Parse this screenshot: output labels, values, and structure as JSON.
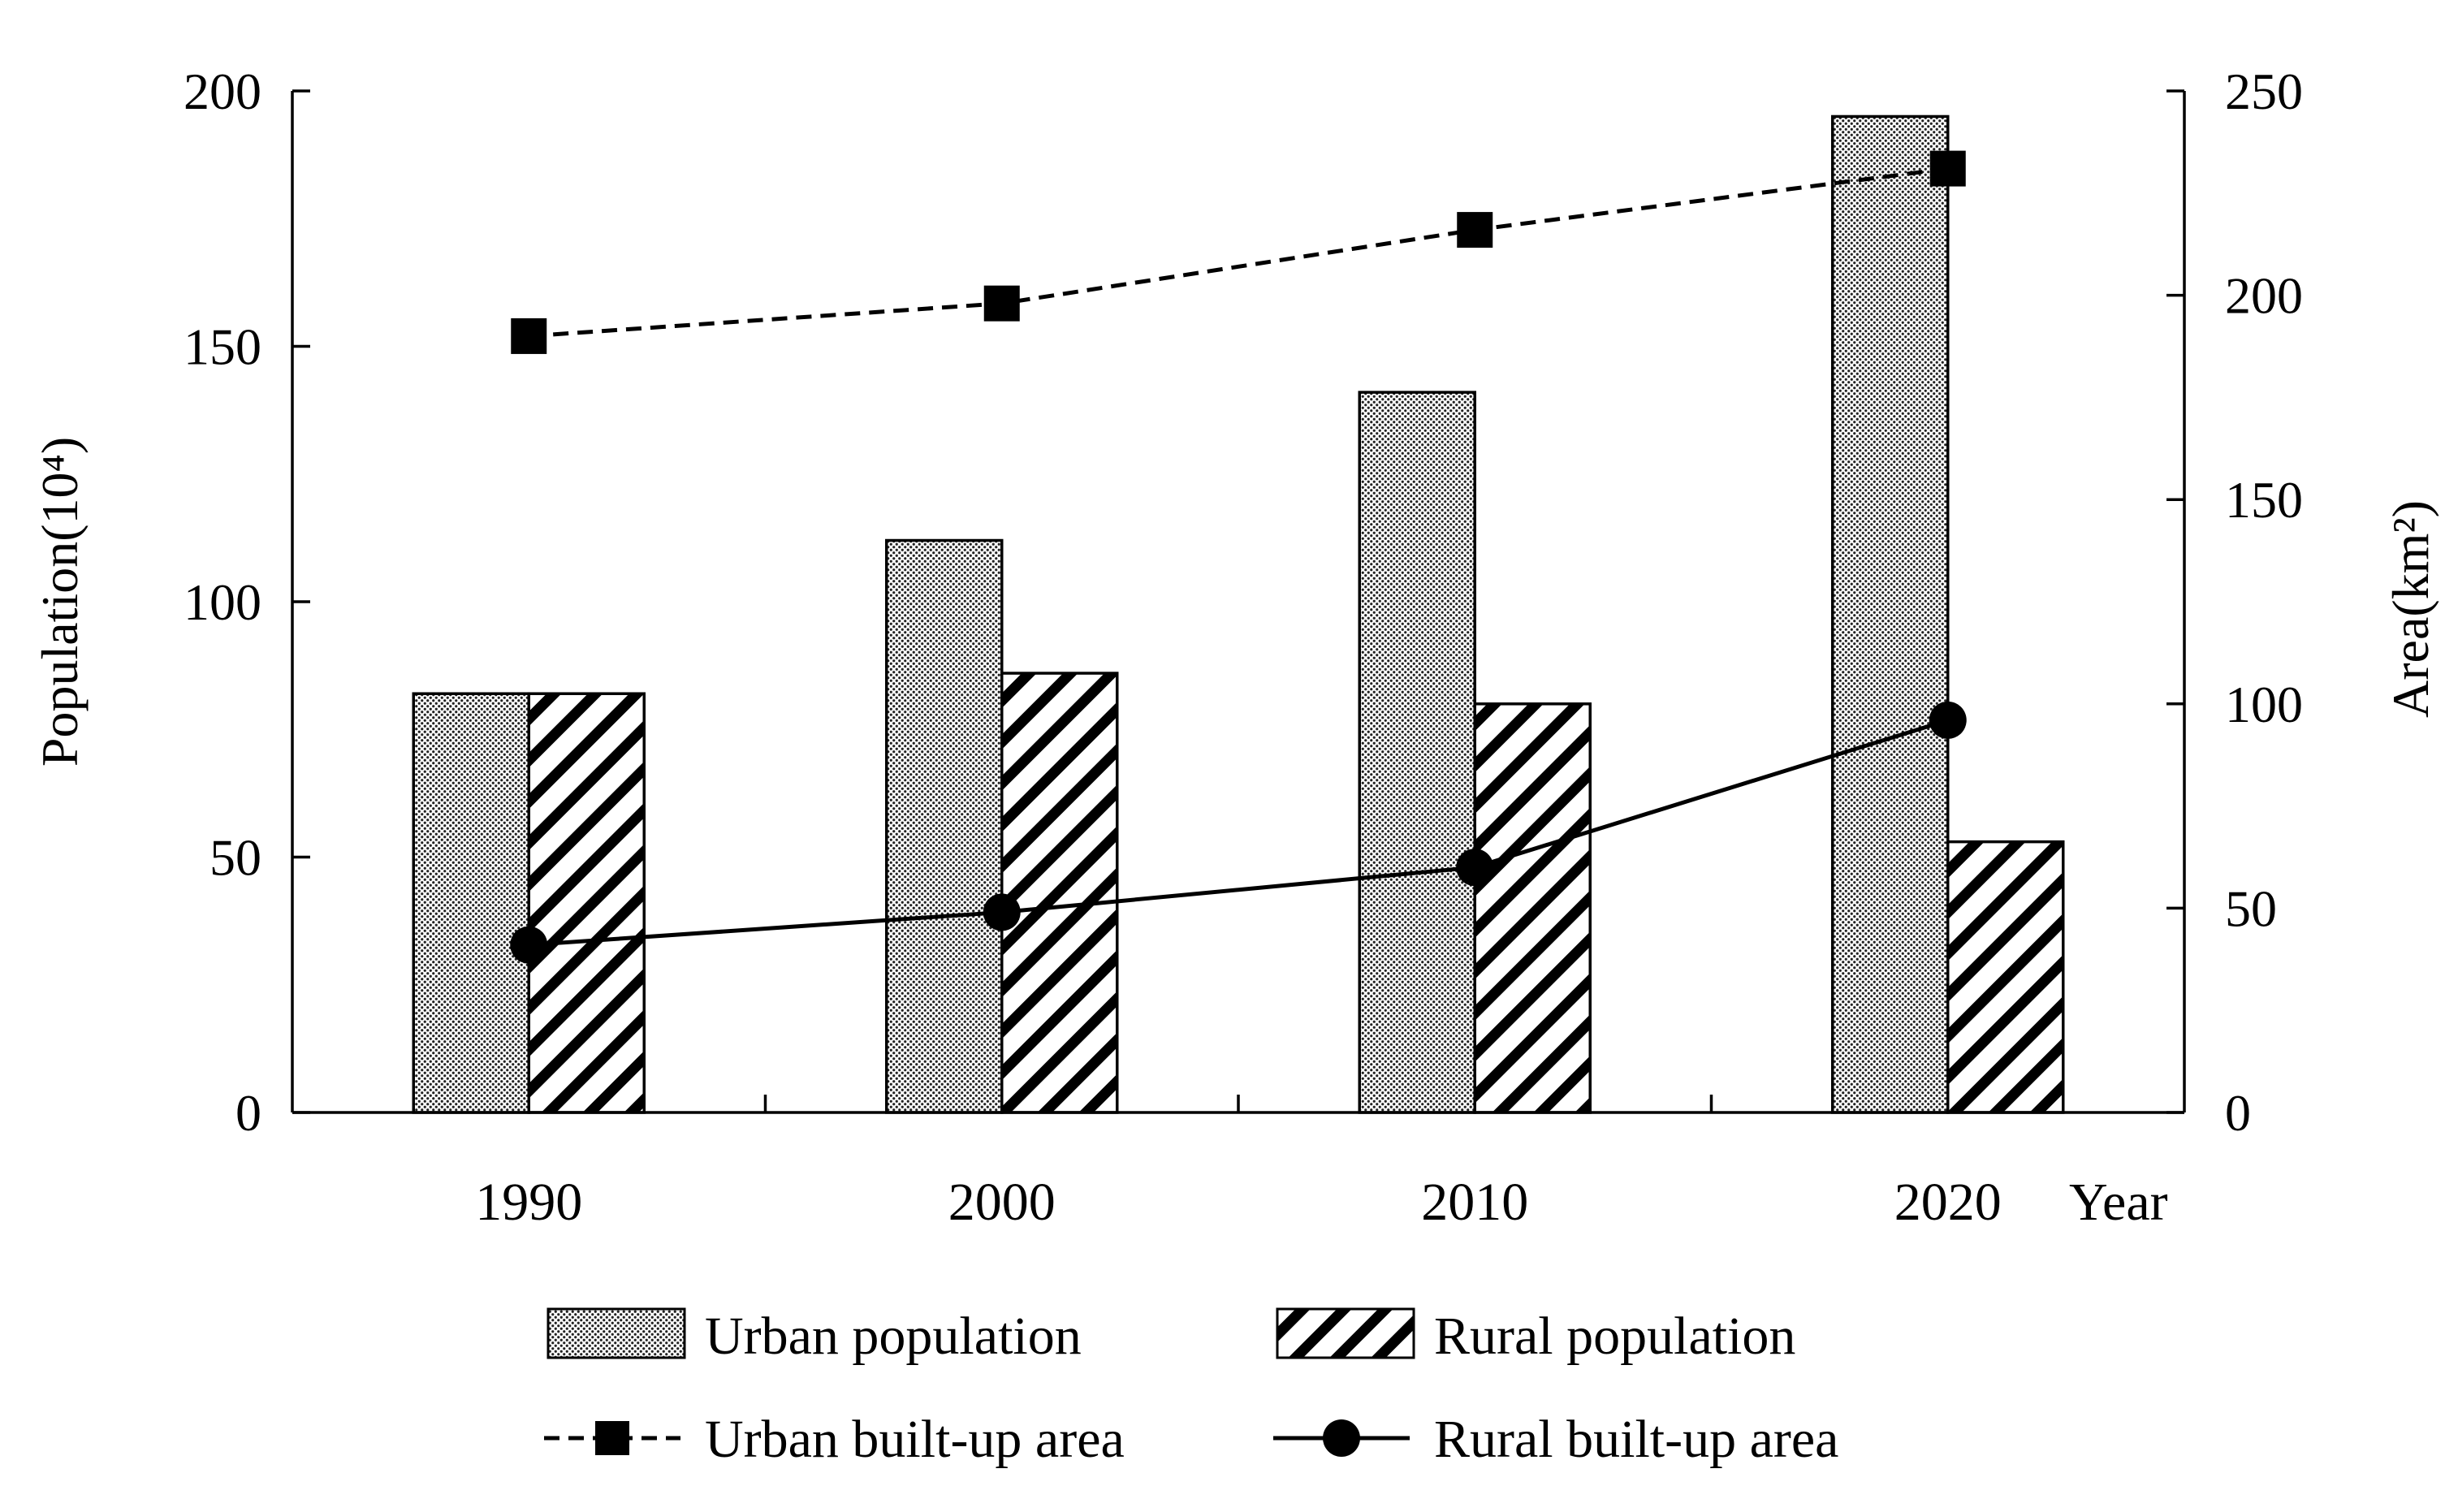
{
  "chart_data": {
    "type": "bar",
    "categories": [
      "1990",
      "2000",
      "2010",
      "2020"
    ],
    "xlabel": "Year",
    "ylabel": "Population(10⁴)",
    "ylabel_right": "Area(km²)",
    "ylim": [
      0,
      200
    ],
    "ylim_right": [
      0,
      250
    ],
    "yticks": [
      "0",
      "50",
      "100",
      "150",
      "200"
    ],
    "yticks_right": [
      "0",
      "50",
      "100",
      "150",
      "200",
      "250"
    ],
    "series": [
      {
        "name": "Urban population",
        "kind": "bar",
        "axis": "left",
        "pattern": "dots",
        "values": [
          82,
          112,
          141,
          195
        ]
      },
      {
        "name": "Rural population",
        "kind": "bar",
        "axis": "left",
        "pattern": "hatch",
        "values": [
          82,
          86,
          80,
          53
        ]
      },
      {
        "name": "Urban built-up area",
        "kind": "line",
        "axis": "right",
        "style": "dashed",
        "marker": "square",
        "values": [
          190,
          198,
          216,
          231
        ]
      },
      {
        "name": "Rural built-up area",
        "kind": "line",
        "axis": "right",
        "style": "solid",
        "marker": "circle",
        "values": [
          41,
          49,
          60,
          96
        ]
      }
    ],
    "legend_position": "bottom",
    "grid": false
  }
}
